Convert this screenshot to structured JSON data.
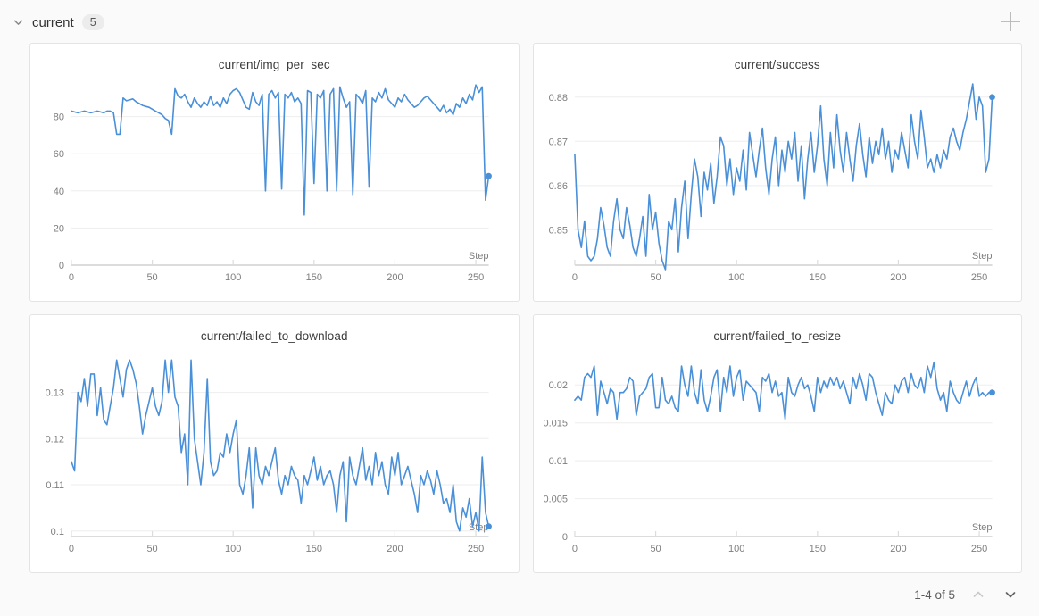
{
  "header": {
    "section_label": "current",
    "count_badge": "5",
    "collapse_icon": "chevron-down",
    "add_panel_icon": "plus"
  },
  "footer": {
    "pagination_text": "1-4 of 5",
    "prev_icon": "chevron-up",
    "next_icon": "chevron-down"
  },
  "colors": {
    "line": "#4a90d9",
    "grid": "#eeeeee",
    "axis": "#dcdcdc",
    "tick_text": "#7e7e7e",
    "title_text": "#3c3c3c",
    "page_background": "#fafafa",
    "panel_background": "#ffffff"
  },
  "chart_data": [
    {
      "type": "line",
      "title": "current/img_per_sec",
      "xlabel": "Step",
      "x_ticks": [
        0,
        50,
        100,
        150,
        200,
        250
      ],
      "y_ticks": [
        "0",
        "20",
        "40",
        "60",
        "80"
      ],
      "xlim": [
        0,
        258
      ],
      "ylim": [
        0,
        100
      ],
      "x_step": 2,
      "end_marker": true,
      "values": [
        83,
        82.5,
        82,
        82.5,
        83,
        82.5,
        82,
        82.5,
        83,
        82.5,
        82,
        83,
        83,
        82,
        70.5,
        70.5,
        90,
        88.5,
        89,
        89.5,
        88,
        87,
        86,
        85.5,
        85,
        84,
        83,
        82,
        81,
        79,
        78,
        70.5,
        95,
        91,
        90,
        92,
        88,
        85,
        90,
        87,
        85,
        88,
        86,
        91,
        86,
        88,
        85,
        90,
        87,
        92,
        94,
        95,
        93,
        89,
        85,
        84,
        93,
        88,
        86,
        92,
        40,
        92,
        94,
        90,
        93,
        41,
        92,
        90,
        93,
        88,
        90,
        87,
        27,
        94,
        93,
        44,
        92,
        90,
        94,
        40,
        92,
        95,
        40,
        96,
        90,
        85,
        88,
        38,
        92,
        90,
        87,
        94,
        42,
        90,
        88,
        93,
        90,
        95,
        89,
        87,
        85,
        90,
        88,
        92,
        89,
        87,
        85,
        86,
        88,
        90,
        91,
        89,
        87,
        85,
        83,
        86,
        82,
        84,
        81,
        87,
        85,
        90,
        87,
        92,
        89,
        97,
        93,
        96,
        35,
        48
      ]
    },
    {
      "type": "line",
      "title": "current/success",
      "xlabel": "Step",
      "x_ticks": [
        0,
        50,
        100,
        150,
        200,
        250
      ],
      "y_ticks": [
        "0.85",
        "0.86",
        "0.87",
        "0.88"
      ],
      "xlim": [
        0,
        258
      ],
      "ylim": [
        0.842,
        0.884
      ],
      "x_step": 2,
      "end_marker": true,
      "values": [
        0.867,
        0.85,
        0.846,
        0.852,
        0.844,
        0.843,
        0.844,
        0.848,
        0.855,
        0.851,
        0.846,
        0.844,
        0.852,
        0.857,
        0.85,
        0.848,
        0.855,
        0.851,
        0.846,
        0.844,
        0.848,
        0.853,
        0.844,
        0.858,
        0.85,
        0.854,
        0.847,
        0.843,
        0.841,
        0.852,
        0.85,
        0.857,
        0.845,
        0.855,
        0.861,
        0.848,
        0.858,
        0.866,
        0.862,
        0.853,
        0.863,
        0.859,
        0.865,
        0.856,
        0.862,
        0.871,
        0.869,
        0.86,
        0.866,
        0.858,
        0.864,
        0.861,
        0.868,
        0.859,
        0.872,
        0.867,
        0.862,
        0.868,
        0.873,
        0.864,
        0.858,
        0.866,
        0.871,
        0.86,
        0.868,
        0.863,
        0.87,
        0.866,
        0.872,
        0.861,
        0.869,
        0.857,
        0.866,
        0.872,
        0.863,
        0.869,
        0.878,
        0.866,
        0.86,
        0.872,
        0.864,
        0.876,
        0.868,
        0.863,
        0.872,
        0.866,
        0.861,
        0.869,
        0.874,
        0.867,
        0.862,
        0.871,
        0.865,
        0.87,
        0.867,
        0.873,
        0.866,
        0.87,
        0.863,
        0.868,
        0.866,
        0.872,
        0.868,
        0.864,
        0.876,
        0.87,
        0.866,
        0.877,
        0.871,
        0.864,
        0.866,
        0.863,
        0.867,
        0.864,
        0.868,
        0.866,
        0.871,
        0.873,
        0.87,
        0.868,
        0.872,
        0.875,
        0.879,
        0.883,
        0.875,
        0.88,
        0.878,
        0.863,
        0.866,
        0.88
      ]
    },
    {
      "type": "line",
      "title": "current/failed_to_download",
      "xlabel": "Step",
      "x_ticks": [
        0,
        50,
        100,
        150,
        200,
        250
      ],
      "y_ticks": [
        "0.1",
        "0.11",
        "0.12",
        "0.13"
      ],
      "xlim": [
        0,
        258
      ],
      "ylim": [
        0.0988,
        0.139
      ],
      "x_step": 2,
      "end_marker": true,
      "values": [
        0.115,
        0.113,
        0.13,
        0.128,
        0.133,
        0.127,
        0.134,
        0.134,
        0.125,
        0.131,
        0.124,
        0.123,
        0.127,
        0.131,
        0.137,
        0.133,
        0.129,
        0.135,
        0.137,
        0.135,
        0.132,
        0.127,
        0.121,
        0.125,
        0.128,
        0.131,
        0.127,
        0.125,
        0.128,
        0.137,
        0.13,
        0.137,
        0.129,
        0.127,
        0.117,
        0.121,
        0.11,
        0.137,
        0.12,
        0.115,
        0.11,
        0.117,
        0.133,
        0.115,
        0.112,
        0.113,
        0.117,
        0.116,
        0.121,
        0.117,
        0.121,
        0.124,
        0.11,
        0.108,
        0.112,
        0.118,
        0.105,
        0.118,
        0.112,
        0.11,
        0.114,
        0.112,
        0.115,
        0.118,
        0.111,
        0.108,
        0.112,
        0.11,
        0.114,
        0.112,
        0.111,
        0.106,
        0.112,
        0.11,
        0.113,
        0.116,
        0.111,
        0.114,
        0.11,
        0.112,
        0.113,
        0.11,
        0.104,
        0.112,
        0.115,
        0.102,
        0.116,
        0.112,
        0.11,
        0.114,
        0.118,
        0.111,
        0.114,
        0.11,
        0.117,
        0.112,
        0.115,
        0.11,
        0.108,
        0.116,
        0.112,
        0.117,
        0.11,
        0.112,
        0.114,
        0.111,
        0.108,
        0.104,
        0.112,
        0.11,
        0.113,
        0.111,
        0.108,
        0.113,
        0.11,
        0.106,
        0.107,
        0.104,
        0.11,
        0.102,
        0.1,
        0.105,
        0.103,
        0.107,
        0.101,
        0.104,
        0.1,
        0.116,
        0.104,
        0.101
      ]
    },
    {
      "type": "line",
      "title": "current/failed_to_resize",
      "xlabel": "Step",
      "x_ticks": [
        0,
        50,
        100,
        150,
        200,
        250
      ],
      "y_ticks": [
        "0",
        "0.005",
        "0.01",
        "0.015",
        "0.02"
      ],
      "xlim": [
        0,
        258
      ],
      "ylim": [
        0,
        0.0245
      ],
      "x_step": 2,
      "end_marker": true,
      "values": [
        0.018,
        0.0185,
        0.018,
        0.021,
        0.0215,
        0.021,
        0.0225,
        0.016,
        0.0205,
        0.019,
        0.0175,
        0.0195,
        0.019,
        0.0155,
        0.019,
        0.019,
        0.0195,
        0.021,
        0.0205,
        0.016,
        0.0185,
        0.019,
        0.0195,
        0.021,
        0.0215,
        0.017,
        0.017,
        0.021,
        0.018,
        0.0175,
        0.0185,
        0.017,
        0.0165,
        0.0225,
        0.02,
        0.0185,
        0.0225,
        0.019,
        0.0175,
        0.022,
        0.018,
        0.0165,
        0.0185,
        0.021,
        0.022,
        0.0165,
        0.021,
        0.019,
        0.0225,
        0.0185,
        0.021,
        0.022,
        0.018,
        0.0205,
        0.02,
        0.0195,
        0.019,
        0.0165,
        0.021,
        0.0205,
        0.0215,
        0.019,
        0.0205,
        0.0185,
        0.019,
        0.0155,
        0.021,
        0.019,
        0.0185,
        0.02,
        0.021,
        0.0195,
        0.02,
        0.0185,
        0.0165,
        0.021,
        0.019,
        0.0205,
        0.0195,
        0.021,
        0.02,
        0.021,
        0.0195,
        0.0205,
        0.019,
        0.0175,
        0.021,
        0.0195,
        0.0215,
        0.02,
        0.018,
        0.0215,
        0.021,
        0.019,
        0.0175,
        0.016,
        0.019,
        0.018,
        0.0175,
        0.02,
        0.019,
        0.0205,
        0.021,
        0.019,
        0.0215,
        0.02,
        0.0195,
        0.021,
        0.019,
        0.0225,
        0.021,
        0.023,
        0.0195,
        0.018,
        0.019,
        0.0165,
        0.0205,
        0.019,
        0.018,
        0.0175,
        0.019,
        0.0205,
        0.0185,
        0.02,
        0.021,
        0.0185,
        0.019,
        0.0185,
        0.019,
        0.019
      ]
    }
  ]
}
